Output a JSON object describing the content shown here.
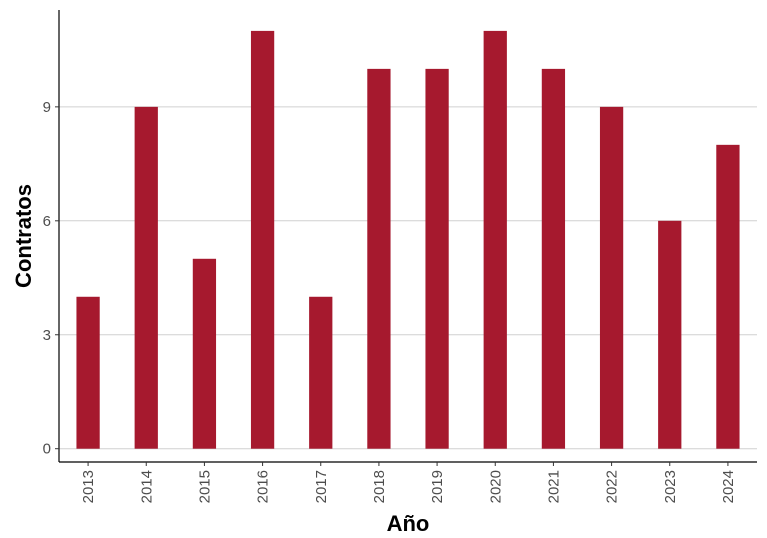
{
  "chart_data": {
    "type": "bar",
    "categories": [
      "2013",
      "2014",
      "2015",
      "2016",
      "2017",
      "2018",
      "2019",
      "2020",
      "2021",
      "2022",
      "2023",
      "2024"
    ],
    "values": [
      4,
      9,
      5,
      11,
      4,
      10,
      10,
      11,
      10,
      9,
      6,
      8
    ],
    "xlabel": "Año",
    "ylabel": "Contratos",
    "ylim": [
      -0.35,
      11.55
    ],
    "yticks": [
      0,
      3,
      6,
      9
    ],
    "grid": "horizontal",
    "bar_color": "#a6192e"
  }
}
